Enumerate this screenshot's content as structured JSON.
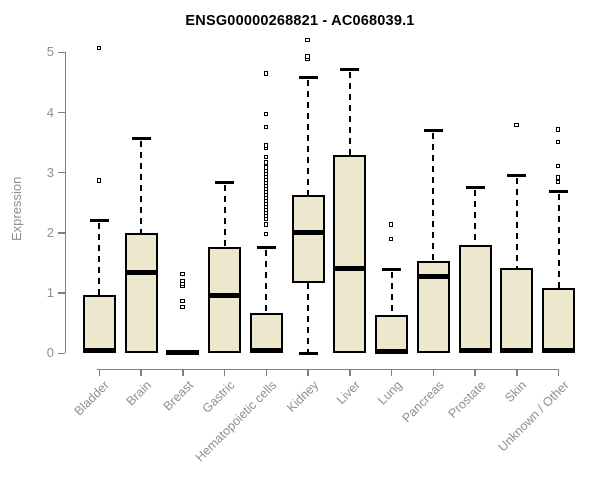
{
  "chart_data": {
    "type": "boxplot",
    "title": "ENSG00000268821 - AC068039.1",
    "ylabel": "Expression",
    "xlabel": "",
    "ylim": [
      0,
      5.2
    ],
    "yticks": [
      0,
      1,
      2,
      3,
      4,
      5
    ],
    "grid": false,
    "legend": "none",
    "box_fill_color": "#EDE8CD",
    "box_border_color": "#000000",
    "axis_color": "#7f7f7f",
    "tick_label_color": "#8f8f8f",
    "title_color": "#000000",
    "categories": [
      "Bladder",
      "Brain",
      "Breast",
      "Gastric",
      "Hematopoietic cells",
      "Kidney",
      "Liver",
      "Lung",
      "Pancreas",
      "Prostate",
      "Skin",
      "Unknown / Other"
    ],
    "series": [
      {
        "label": "Bladder",
        "q1": 0,
        "median": 0.04,
        "q3": 0.97,
        "whisker_low": 0,
        "whisker_high": 2.21,
        "outliers": [
          2.86,
          5.06
        ]
      },
      {
        "label": "Brain",
        "q1": 0,
        "median": 1.35,
        "q3": 2.0,
        "whisker_low": 0,
        "whisker_high": 3.57,
        "outliers": []
      },
      {
        "label": "Breast",
        "q1": 0,
        "median": 0.02,
        "q3": 0.04,
        "whisker_low": 0,
        "whisker_high": 0.05,
        "outliers": [
          0.76,
          0.86,
          1.11,
          1.15,
          1.19,
          1.31
        ]
      },
      {
        "label": "Gastric",
        "q1": 0,
        "median": 0.96,
        "q3": 1.76,
        "whisker_low": 0,
        "whisker_high": 2.83,
        "outliers": []
      },
      {
        "label": "Hematopoietic cells",
        "q1": 0,
        "median": 0.04,
        "q3": 0.67,
        "whisker_low": 0,
        "whisker_high": 1.75,
        "outliers": [
          1.97,
          2.13,
          2.22,
          2.27,
          2.32,
          2.37,
          2.42,
          2.47,
          2.52,
          2.57,
          2.62,
          2.67,
          2.72,
          2.77,
          2.82,
          2.87,
          2.92,
          2.97,
          3.02,
          3.08,
          3.16,
          3.25,
          3.4,
          3.44,
          3.75,
          3.97,
          4.64
        ]
      },
      {
        "label": "Kidney",
        "q1": 1.16,
        "median": 2.0,
        "q3": 2.63,
        "whisker_low": 0,
        "whisker_high": 4.58,
        "outliers": [
          4.88,
          4.92,
          5.2
        ]
      },
      {
        "label": "Liver",
        "q1": 0,
        "median": 1.41,
        "q3": 3.3,
        "whisker_low": 0,
        "whisker_high": 4.72,
        "outliers": []
      },
      {
        "label": "Lung",
        "q1": 0,
        "median": 0.03,
        "q3": 0.64,
        "whisker_low": 0,
        "whisker_high": 1.39,
        "outliers": [
          1.89,
          2.13
        ]
      },
      {
        "label": "Pancreas",
        "q1": 0,
        "median": 1.28,
        "q3": 1.53,
        "whisker_low": 0,
        "whisker_high": 3.7,
        "outliers": []
      },
      {
        "label": "Prostate",
        "q1": 0,
        "median": 0.04,
        "q3": 1.8,
        "whisker_low": 0,
        "whisker_high": 2.76,
        "outliers": []
      },
      {
        "label": "Skin",
        "q1": 0,
        "median": 0.04,
        "q3": 1.41,
        "whisker_low": 0,
        "whisker_high": 2.95,
        "outliers": [
          3.78
        ]
      },
      {
        "label": "Unknown / Other",
        "q1": 0,
        "median": 0.04,
        "q3": 1.08,
        "whisker_low": 0,
        "whisker_high": 2.69,
        "outliers": [
          2.84,
          2.91,
          3.1,
          3.5,
          3.71
        ]
      }
    ]
  }
}
